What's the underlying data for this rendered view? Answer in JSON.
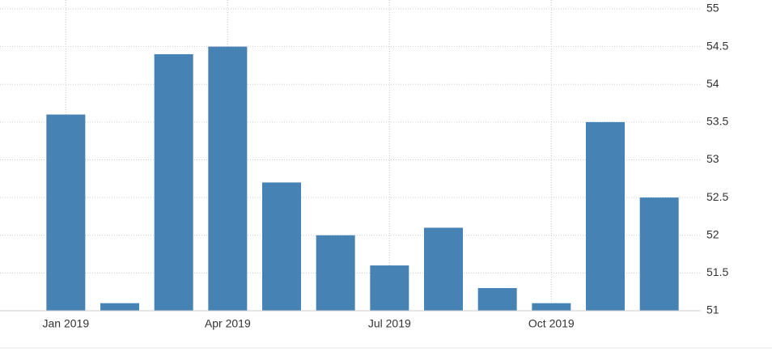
{
  "chart_data": {
    "type": "bar",
    "categories": [
      "Jan 2019",
      null,
      null,
      "Apr 2019",
      null,
      null,
      "Jul 2019",
      null,
      null,
      "Oct 2019",
      null,
      null
    ],
    "values": [
      53.6,
      51.1,
      54.4,
      54.5,
      52.7,
      52.0,
      51.6,
      52.1,
      51.3,
      51.1,
      53.5,
      52.5
    ],
    "color": "#4682b4",
    "ylim": [
      51,
      55
    ],
    "yticks": [
      51,
      51.5,
      52,
      52.5,
      53,
      53.5,
      54,
      54.5,
      55
    ],
    "grid": true
  }
}
